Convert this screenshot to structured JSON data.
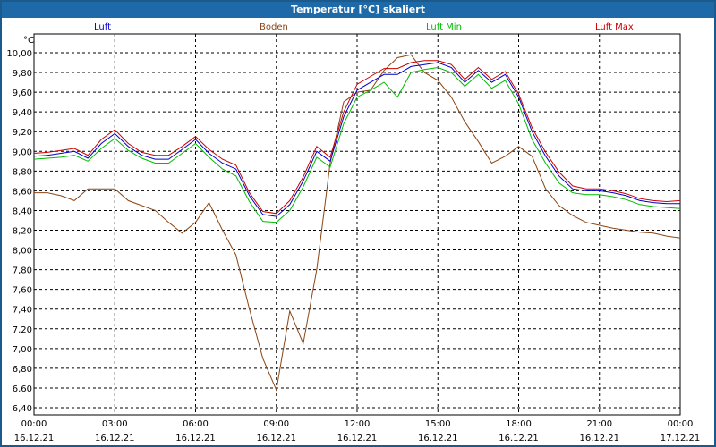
{
  "window": {
    "title": "Temperatur [°C] skaliert"
  },
  "chart_data": {
    "type": "line",
    "title": "Temperatur [°C] skaliert",
    "ylabel": "°C",
    "ylim": [
      6.4,
      10.1
    ],
    "yticks": [
      "10,00",
      "9,80",
      "9,60",
      "9,40",
      "9,20",
      "9,00",
      "8,80",
      "8,60",
      "8,40",
      "8,20",
      "8,00",
      "7,80",
      "7,60",
      "7,40",
      "7,20",
      "7,00",
      "6,80",
      "6,60",
      "6,40"
    ],
    "ytick_values": [
      10.0,
      9.8,
      9.6,
      9.4,
      9.2,
      9.0,
      8.8,
      8.6,
      8.4,
      8.2,
      8.0,
      7.8,
      7.6,
      7.4,
      7.2,
      7.0,
      6.8,
      6.6,
      6.4
    ],
    "xlim": [
      0,
      24
    ],
    "xticks_time": [
      "00:00",
      "03:00",
      "06:00",
      "09:00",
      "12:00",
      "15:00",
      "18:00",
      "21:00",
      "00:00"
    ],
    "xticks_date": [
      "16.12.21",
      "16.12.21",
      "16.12.21",
      "16.12.21",
      "16.12.21",
      "16.12.21",
      "16.12.21",
      "16.12.21",
      "17.12.21"
    ],
    "xtick_hours": [
      0,
      3,
      6,
      9,
      12,
      15,
      18,
      21,
      24
    ],
    "grid": true,
    "legend": [
      "Luft",
      "Boden",
      "Luft Min",
      "Luft Max"
    ],
    "colors": {
      "Luft": "#0000cc",
      "Boden": "#8b4513",
      "Luft Min": "#00bb00",
      "Luft Max": "#cc0000"
    },
    "x": [
      0,
      0.5,
      1,
      1.5,
      2,
      2.5,
      3,
      3.5,
      4,
      4.5,
      5,
      5.5,
      6,
      6.5,
      7,
      7.5,
      8,
      8.5,
      9,
      9.5,
      10,
      10.5,
      11,
      11.5,
      12,
      12.5,
      13,
      13.5,
      14,
      14.5,
      15,
      15.5,
      16,
      16.5,
      17,
      17.5,
      18,
      18.5,
      19,
      19.5,
      20,
      20.5,
      21,
      21.5,
      22,
      22.5,
      23,
      23.5,
      24
    ],
    "series": [
      {
        "name": "Luft",
        "values": [
          8.95,
          8.96,
          8.98,
          9.0,
          8.93,
          9.08,
          9.18,
          9.05,
          8.96,
          8.92,
          8.92,
          9.02,
          9.12,
          8.98,
          8.88,
          8.82,
          8.55,
          8.36,
          8.34,
          8.46,
          8.7,
          9.0,
          8.9,
          9.35,
          9.62,
          9.7,
          9.78,
          9.78,
          9.86,
          9.88,
          9.9,
          9.85,
          9.7,
          9.82,
          9.7,
          9.78,
          9.55,
          9.2,
          8.95,
          8.75,
          8.62,
          8.6,
          8.6,
          8.58,
          8.55,
          8.5,
          8.48,
          8.47,
          8.47
        ]
      },
      {
        "name": "Boden",
        "values": [
          8.58,
          8.58,
          8.55,
          8.5,
          8.62,
          8.62,
          8.62,
          8.5,
          8.45,
          8.4,
          8.28,
          8.17,
          8.28,
          8.48,
          8.2,
          7.95,
          7.4,
          6.9,
          6.58,
          7.38,
          7.05,
          7.8,
          8.88,
          9.5,
          9.6,
          9.62,
          9.82,
          9.95,
          9.98,
          9.8,
          9.72,
          9.55,
          9.3,
          9.1,
          8.88,
          8.95,
          9.05,
          8.95,
          8.62,
          8.45,
          8.35,
          8.28,
          8.25,
          8.22,
          8.2,
          8.18,
          8.17,
          8.14,
          8.12
        ]
      },
      {
        "name": "Luft Min",
        "values": [
          8.92,
          8.93,
          8.94,
          8.96,
          8.9,
          9.03,
          9.13,
          9.01,
          8.93,
          8.88,
          8.88,
          8.98,
          9.08,
          8.94,
          8.82,
          8.75,
          8.49,
          8.29,
          8.28,
          8.4,
          8.64,
          8.94,
          8.84,
          9.28,
          9.55,
          9.62,
          9.7,
          9.55,
          9.8,
          9.83,
          9.85,
          9.8,
          9.66,
          9.78,
          9.64,
          9.72,
          9.48,
          9.12,
          8.88,
          8.68,
          8.58,
          8.56,
          8.56,
          8.54,
          8.51,
          8.46,
          8.44,
          8.43,
          8.42
        ]
      },
      {
        "name": "Luft Max",
        "values": [
          8.98,
          8.99,
          9.01,
          9.03,
          8.96,
          9.12,
          9.22,
          9.08,
          8.99,
          8.96,
          8.96,
          9.05,
          9.15,
          9.02,
          8.92,
          8.86,
          8.58,
          8.39,
          8.37,
          8.5,
          8.74,
          9.05,
          8.94,
          9.4,
          9.68,
          9.76,
          9.84,
          9.84,
          9.9,
          9.92,
          9.92,
          9.88,
          9.73,
          9.85,
          9.73,
          9.81,
          9.58,
          9.24,
          8.99,
          8.79,
          8.65,
          8.62,
          8.62,
          8.6,
          8.57,
          8.52,
          8.5,
          8.49,
          8.5
        ]
      }
    ]
  }
}
